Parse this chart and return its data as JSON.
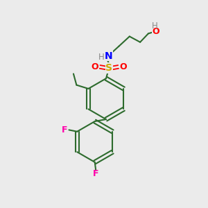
{
  "background_color": "#ebebeb",
  "bond_color": "#2d6b2d",
  "atom_colors": {
    "O": "#ff0000",
    "N": "#0000ff",
    "S": "#ccaa00",
    "F": "#ff00aa",
    "H_gray": "#888888",
    "C": "#2d6b2d"
  },
  "title": "",
  "figsize": [
    3.0,
    3.0
  ],
  "dpi": 100
}
